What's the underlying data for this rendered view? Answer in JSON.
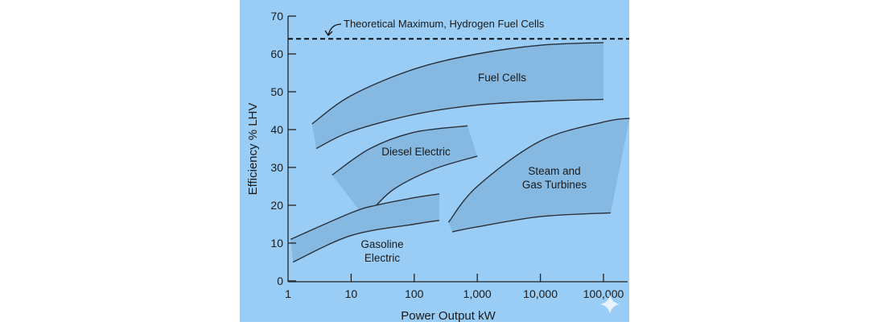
{
  "chart_data": {
    "type": "area",
    "title": "",
    "xlabel": "Power Output kW",
    "ylabel": "Efficiency % LHV",
    "xscale": "log",
    "xlim": [
      1,
      100000
    ],
    "ylim": [
      0,
      70
    ],
    "xticks": [
      "1",
      "10",
      "100",
      "1,000",
      "10,000",
      "100,000"
    ],
    "yticks": [
      "0",
      "10",
      "20",
      "30",
      "40",
      "50",
      "60",
      "70"
    ],
    "grid": false,
    "colors": {
      "background": "#99cdf6",
      "band": "#86b9e2",
      "line": "#2a2f38"
    },
    "reference_line": {
      "label": "Theoretical Maximum, Hydrogen Fuel Cells",
      "y": 64,
      "style": "dashed"
    },
    "series": [
      {
        "name": "Fuel Cells",
        "upper": [
          [
            2.4,
            41.5
          ],
          [
            10,
            49
          ],
          [
            100,
            56
          ],
          [
            1000,
            60
          ],
          [
            10000,
            62.3
          ],
          [
            100000,
            63
          ]
        ],
        "lower": [
          [
            2.8,
            35
          ],
          [
            10,
            39.5
          ],
          [
            100,
            44
          ],
          [
            1000,
            46.5
          ],
          [
            10000,
            47.5
          ],
          [
            100000,
            48
          ]
        ]
      },
      {
        "name": "Diesel Electric",
        "upper": [
          [
            5,
            28
          ],
          [
            20,
            35
          ],
          [
            100,
            39.3
          ],
          [
            700,
            41
          ]
        ],
        "lower": [
          [
            25,
            20
          ],
          [
            50,
            24.5
          ],
          [
            200,
            29.5
          ],
          [
            1000,
            33
          ]
        ]
      },
      {
        "name": "Gasoline Electric",
        "upper": [
          [
            1.1,
            11
          ],
          [
            10,
            18
          ],
          [
            25,
            20
          ],
          [
            100,
            22
          ],
          [
            250,
            23
          ]
        ],
        "lower": [
          [
            1.2,
            5
          ],
          [
            10,
            12
          ],
          [
            100,
            15
          ],
          [
            250,
            16
          ]
        ]
      },
      {
        "name": "Steam and Gas Turbines",
        "upper": [
          [
            350,
            15.5
          ],
          [
            1000,
            25
          ],
          [
            10000,
            37
          ],
          [
            100000,
            42
          ],
          [
            260000,
            43
          ]
        ],
        "lower": [
          [
            400,
            13
          ],
          [
            1000,
            14.3
          ],
          [
            10000,
            17
          ],
          [
            130000,
            18
          ]
        ]
      }
    ],
    "band_labels": [
      {
        "lines": [
          "Fuel Cells"
        ]
      },
      {
        "lines": [
          "Diesel Electric"
        ]
      },
      {
        "lines": [
          "Gasoline",
          "Electric"
        ]
      },
      {
        "lines": [
          "Steam and",
          "Gas Turbines"
        ]
      }
    ]
  }
}
